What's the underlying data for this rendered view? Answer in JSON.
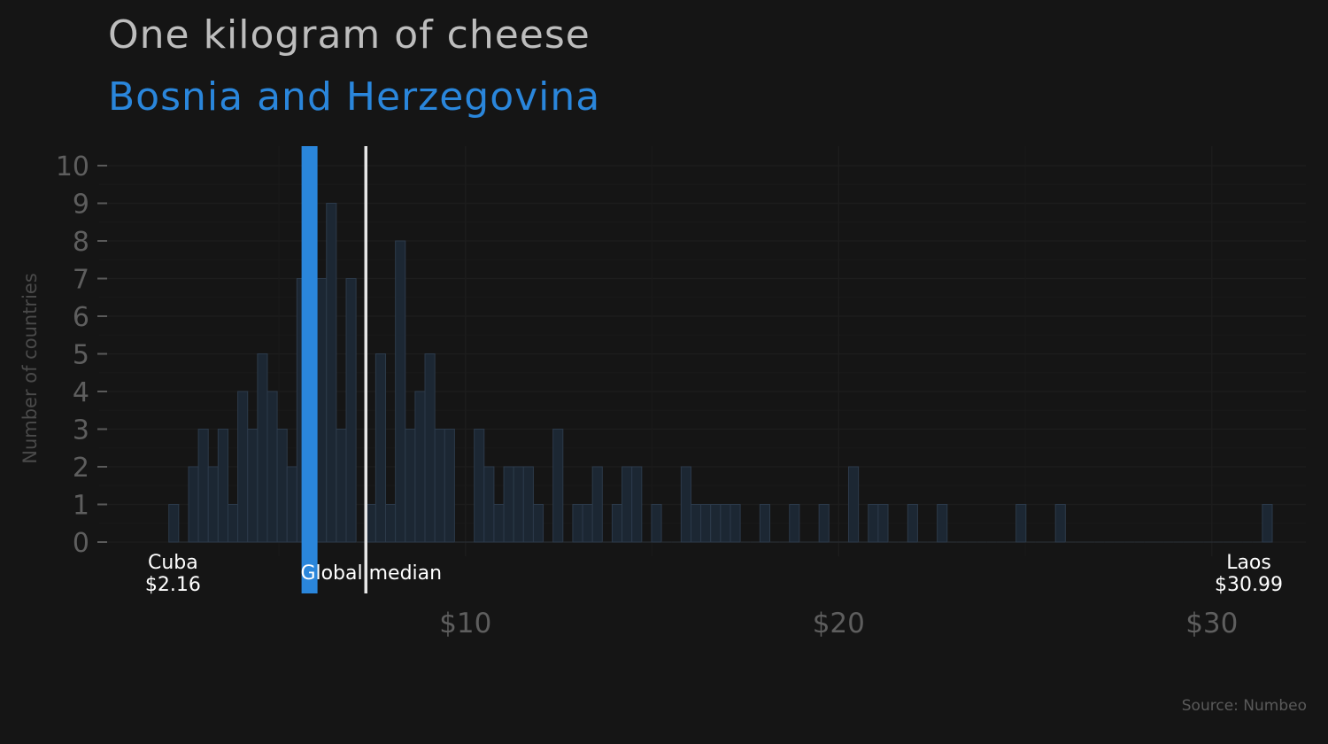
{
  "title": "One kilogram of cheese",
  "subtitle": "Bosnia and Herzegovina",
  "source": "Source: Numbeo",
  "colors": {
    "background": "#151515",
    "highlight": "#2a86db",
    "median": "#e6e6e6",
    "bars_fill": "#1c2733",
    "bars_stroke": "#2c3a4a",
    "axis_text": "#5e5e5e"
  },
  "chart_data": {
    "type": "bar",
    "ylabel": "Number of countries",
    "xlabel": "",
    "ylim": [
      0,
      10
    ],
    "xlim": [
      0.4,
      32.4
    ],
    "grid": true,
    "y_ticks": [
      "0",
      "1",
      "2",
      "3",
      "4",
      "5",
      "6",
      "7",
      "8",
      "9",
      "10"
    ],
    "x_ticks": [
      {
        "value": 10,
        "label": "$10"
      },
      {
        "value": 20,
        "label": "$20"
      },
      {
        "value": 30,
        "label": "$30"
      }
    ],
    "bin_width": 0.264,
    "bin_start": 2.05,
    "counts": [
      1,
      0,
      2,
      3,
      2,
      3,
      1,
      4,
      3,
      5,
      4,
      3,
      2,
      7,
      0,
      7,
      9,
      3,
      7,
      0,
      1,
      5,
      1,
      8,
      3,
      4,
      5,
      3,
      3,
      0,
      0,
      3,
      2,
      1,
      2,
      2,
      2,
      1,
      0,
      3,
      0,
      1,
      1,
      2,
      0,
      1,
      2,
      2,
      0,
      1,
      0,
      0,
      2,
      1,
      1,
      1,
      1,
      1,
      0,
      0,
      1,
      0,
      0,
      1,
      0,
      0,
      1,
      0,
      0,
      2,
      0,
      1,
      1,
      0,
      0,
      1,
      0,
      0,
      1,
      0,
      0,
      0,
      0,
      0,
      0,
      0,
      1,
      0,
      0,
      0,
      1,
      0,
      0,
      0,
      0,
      0,
      0,
      0,
      0,
      0,
      0,
      0,
      0,
      0,
      0,
      0,
      0,
      0,
      0,
      0,
      0,
      1
    ],
    "highlight": {
      "country": "Bosnia and Herzegovina",
      "value": 5.82
    },
    "median": {
      "label": "Global median",
      "value": 7.33
    },
    "annotations": [
      {
        "name": "Cuba",
        "price": "$2.16",
        "value": 2.16
      },
      {
        "name": "Laos",
        "price": "$30.99",
        "value": 30.99
      }
    ]
  }
}
